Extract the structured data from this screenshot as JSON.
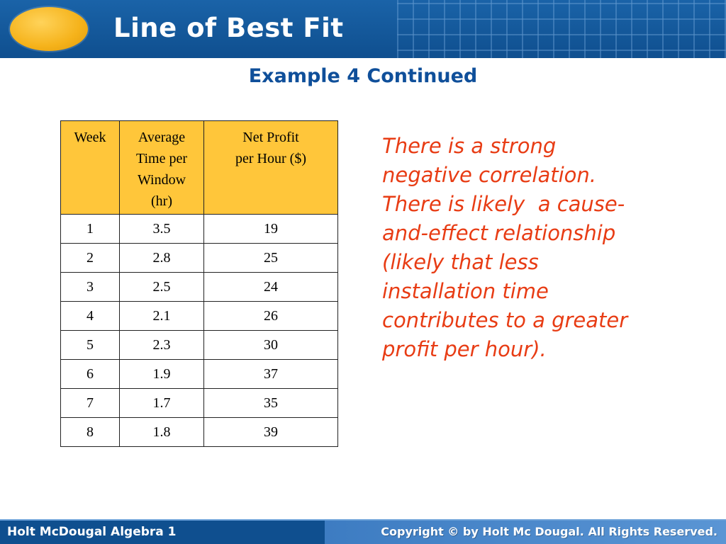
{
  "header": {
    "title": "Line of Best Fit",
    "oval_color": "#f5b21a",
    "banner_color": "#0f4f8f"
  },
  "subtitle": "Example 4 Continued",
  "table": {
    "header_color": "#ffc63a",
    "columns": [
      [
        "Week"
      ],
      [
        "Average",
        "Time per",
        "Window",
        "(hr)"
      ],
      [
        "Net Profit",
        "per Hour ($)"
      ]
    ],
    "rows": [
      [
        "1",
        "3.5",
        "19"
      ],
      [
        "2",
        "2.8",
        "25"
      ],
      [
        "3",
        "2.5",
        "24"
      ],
      [
        "4",
        "2.1",
        "26"
      ],
      [
        "5",
        "2.3",
        "30"
      ],
      [
        "6",
        "1.9",
        "37"
      ],
      [
        "7",
        "1.7",
        "35"
      ],
      [
        "8",
        "1.8",
        "39"
      ]
    ]
  },
  "statement": {
    "color": "#e83c14",
    "lines": [
      "There is a strong",
      "negative correlation.",
      "There is likely  a cause-",
      "and-effect relationship",
      "(likely that less",
      "installation time",
      "contributes to a greater",
      "profit per hour)."
    ]
  },
  "footer": {
    "left_text": "Holt McDougal Algebra 1",
    "right_text": "Copyright © by Holt Mc Dougal. All Rights Reserved."
  }
}
